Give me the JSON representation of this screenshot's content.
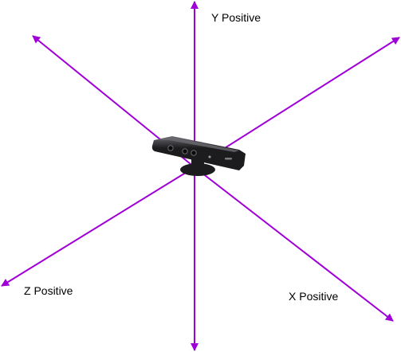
{
  "diagram": {
    "axis_color": "#a000d8",
    "labels": {
      "y_positive": "Y Positive",
      "z_positive": "Z Positive",
      "x_positive": "X Positive"
    },
    "sensor": {
      "name": "Kinect sensor",
      "body_color": "#1c1c1e",
      "highlight_color": "#6a6a70"
    }
  }
}
